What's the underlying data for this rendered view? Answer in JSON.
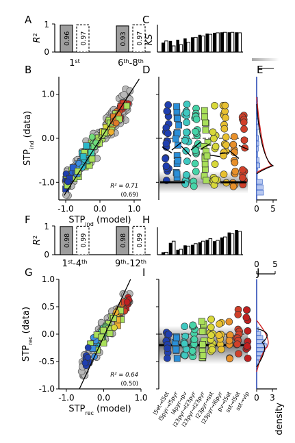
{
  "panel_letters": [
    "A",
    "B",
    "C",
    "D",
    "E",
    "F",
    "G",
    "H",
    "I",
    "J"
  ],
  "chart_data": [
    {
      "panel": "A",
      "type": "bar",
      "ylabel": "R",
      "ylabel_sup": "2",
      "ylim": [
        0,
        1
      ],
      "groups": [
        {
          "label_parts": [
            {
              "t": "1"
            },
            {
              "t": "st",
              "sup": true
            }
          ],
          "values": [
            0.96,
            0.97
          ],
          "labels": [
            "0.96",
            "0.97"
          ]
        },
        {
          "label_parts": [
            {
              "t": "6"
            },
            {
              "t": "th",
              "sup": true
            },
            {
              "t": "-8"
            },
            {
              "t": "th",
              "sup": true
            }
          ],
          "values": [
            0.93,
            0.97
          ],
          "labels": [
            "0.93",
            "0.97"
          ]
        }
      ]
    },
    {
      "panel": "C",
      "type": "bar",
      "ylabel": "KS",
      "ylim": [
        0,
        1
      ],
      "values_dark": [
        0.38,
        0.45,
        0.5,
        0.55,
        0.6,
        0.7,
        0.75,
        0.78,
        0.8,
        0.8,
        0.8
      ],
      "values_light": [
        0.45,
        0.25,
        0.3,
        0.4,
        0.6,
        0.65,
        0.72,
        0.78,
        0.8,
        0.8,
        0.78
      ]
    },
    {
      "panel": "B",
      "type": "scatter",
      "xlabel": "STP",
      "xlabel_sub": "ind",
      "xlabel_suffix": " (model)",
      "ylabel": "STP",
      "ylabel_sub": "ind",
      "ylabel_suffix": " (data)",
      "xlim": [
        -1.2,
        1.2
      ],
      "ylim": [
        -1.4,
        1.4
      ],
      "xticks": [
        "-1.0",
        "0.0",
        "1.0"
      ],
      "yticks": [
        "1.0",
        "0.0",
        "-1.0"
      ],
      "annotation": "R² = 0.71",
      "annotation2": "(0.69)"
    },
    {
      "panel": "D",
      "type": "scatter",
      "ylim": [
        -1.4,
        1.4
      ],
      "dashed_line_y": 0
    },
    {
      "panel": "E",
      "type": "line",
      "xticks": [
        "0",
        "5"
      ]
    },
    {
      "panel": "F",
      "type": "bar",
      "ylabel": "R",
      "ylabel_sup": "2",
      "ylim": [
        0,
        1
      ],
      "groups": [
        {
          "label_parts": [
            {
              "t": "1"
            },
            {
              "t": "st",
              "sup": true
            },
            {
              "t": "-4"
            },
            {
              "t": "th",
              "sup": true
            }
          ],
          "values": [
            0.98,
            0.99
          ],
          "labels": [
            "0.98",
            "0.99"
          ]
        },
        {
          "label_parts": [
            {
              "t": "9"
            },
            {
              "t": "th",
              "sup": true
            },
            {
              "t": "-12"
            },
            {
              "t": "th",
              "sup": true
            }
          ],
          "values": [
            0.98,
            0.99
          ],
          "labels": [
            "0.98",
            "0.99"
          ]
        }
      ]
    },
    {
      "panel": "H",
      "type": "bar",
      "ylim": [
        0,
        1
      ],
      "values_dark": [
        0.1,
        0.48,
        0.2,
        0.38,
        0.4,
        0.5,
        0.6,
        0.55,
        0.7,
        0.9,
        1.0
      ],
      "values_light": [
        0.1,
        0.55,
        0.22,
        0.35,
        0.45,
        0.55,
        0.65,
        0.58,
        0.72,
        0.85,
        0.95
      ]
    },
    {
      "panel": "G",
      "type": "scatter",
      "xlabel": "STP",
      "xlabel_sub": "rec",
      "xlabel_suffix": " (model)",
      "ylabel": "STP",
      "ylabel_sub": "rec",
      "ylabel_suffix": " (data)",
      "xlim": [
        -1.2,
        1.0
      ],
      "ylim": [
        -1.0,
        1.0
      ],
      "xticks": [
        "-1.0",
        "0.0",
        "1.0"
      ],
      "yticks": [
        "1.0",
        "0.5",
        "0.0",
        "-0.5",
        "-1.0"
      ],
      "annotation": "R² = 0.64",
      "annotation2": "(0.50)"
    },
    {
      "panel": "I",
      "type": "scatter",
      "ylim": [
        -1.0,
        1.0
      ],
      "dashed_line_y": 0,
      "categories": [
        "l5et→l5et",
        "l5pyr→l5pyr",
        "l4pyr→pv",
        "l23pyr→l23pyr",
        "l23pyr→l23pyr",
        "l23pyr→sst",
        "l23pyr→l6pyr",
        "pv→l5et",
        "sst→l5et",
        "sst→vip"
      ]
    },
    {
      "panel": "J",
      "type": "line",
      "xlabel": "density",
      "xticks_top": [
        "0",
        "5"
      ],
      "xticks_bottom": [
        "0",
        "3"
      ]
    }
  ]
}
